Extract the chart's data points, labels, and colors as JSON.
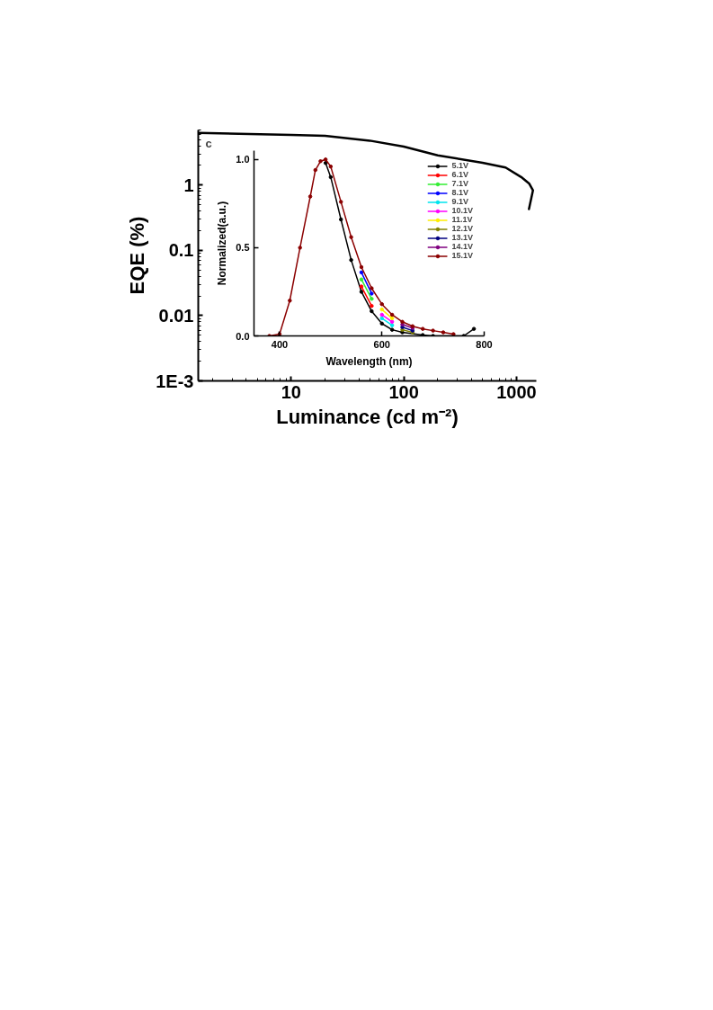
{
  "chart_data": [
    {
      "type": "line",
      "xlabel": "Luminance (cd m⁻²)",
      "ylabel": "EQE (%)",
      "log": "xy",
      "xlim": [
        1.5,
        1500
      ],
      "ylim": [
        0.001,
        7
      ],
      "xticks": [
        10,
        100,
        1000
      ],
      "yticks": [
        {
          "value": 0.001,
          "label": "1E-3"
        },
        0.01,
        0.1,
        1
      ],
      "annotations": [
        "c"
      ],
      "marker": "none",
      "line_style": "solid",
      "series": [
        {
          "color": "#000000",
          "x": [
            1.5,
            10,
            20,
            50,
            100,
            200,
            500,
            800,
            1100,
            1300,
            1400,
            1290
          ],
          "values": [
            6.3,
            5.9,
            5.7,
            4.8,
            3.9,
            2.85,
            2.2,
            1.86,
            1.33,
            1.05,
            0.83,
            0.43
          ]
        }
      ]
    },
    {
      "type": "line",
      "xlabel": "Wavelength (nm)",
      "ylabel": "Normalized(a.u.)",
      "xlim": [
        350,
        800
      ],
      "ylim": [
        0,
        1.05
      ],
      "xticks": [
        400,
        600,
        800
      ],
      "yticks": [
        {
          "value": 0,
          "label": "0.0"
        },
        {
          "value": 0.5,
          "label": "0.5"
        },
        {
          "value": 1,
          "label": "1.0"
        }
      ],
      "legend": "top right",
      "marker": "circle",
      "line_style": "solid",
      "series": [
        {
          "name": "5.1V",
          "color": "#000000",
          "x": [
            490,
            500,
            520,
            540,
            560,
            580,
            600,
            620,
            640,
            680,
            700,
            760,
            780
          ],
          "values": [
            0.98,
            0.9,
            0.66,
            0.43,
            0.25,
            0.14,
            0.07,
            0.035,
            0.02,
            0.005,
            0,
            0,
            0.04
          ]
        },
        {
          "name": "6.1V",
          "color": "#ff0000",
          "x": [
            560,
            580
          ],
          "values": [
            0.28,
            0.17
          ]
        },
        {
          "name": "7.1V",
          "color": "#33ee33",
          "x": [
            560,
            580
          ],
          "values": [
            0.32,
            0.21
          ]
        },
        {
          "name": "8.1V",
          "color": "#0000ff",
          "x": [
            560,
            580
          ],
          "values": [
            0.36,
            0.24
          ]
        },
        {
          "name": "9.1V",
          "color": "#00e5ee",
          "x": [
            600,
            620
          ],
          "values": [
            0.1,
            0.06
          ]
        },
        {
          "name": "10.1V",
          "color": "#ff00ff",
          "x": [
            600,
            620
          ],
          "values": [
            0.12,
            0.08
          ]
        },
        {
          "name": "11.1V",
          "color": "#ffee00",
          "x": [
            600,
            620
          ],
          "values": [
            0.15,
            0.1
          ]
        },
        {
          "name": "12.1V",
          "color": "#808000",
          "x": [
            640,
            660
          ],
          "values": [
            0.035,
            0.02
          ]
        },
        {
          "name": "13.1V",
          "color": "#000080",
          "x": [
            640,
            660
          ],
          "values": [
            0.05,
            0.03
          ]
        },
        {
          "name": "14.1V",
          "color": "#800080",
          "x": [
            640,
            660
          ],
          "values": [
            0.065,
            0.045
          ]
        },
        {
          "name": "15.1V",
          "color": "#8b0000",
          "x": [
            380,
            400,
            420,
            440,
            460,
            470,
            480,
            490,
            500,
            520,
            540,
            560,
            580,
            600,
            620,
            640,
            660,
            680,
            700,
            720,
            740
          ],
          "values": [
            0,
            0.01,
            0.2,
            0.5,
            0.79,
            0.94,
            0.99,
            1.0,
            0.96,
            0.76,
            0.56,
            0.39,
            0.27,
            0.18,
            0.12,
            0.08,
            0.055,
            0.04,
            0.03,
            0.02,
            0.01
          ]
        }
      ]
    }
  ]
}
